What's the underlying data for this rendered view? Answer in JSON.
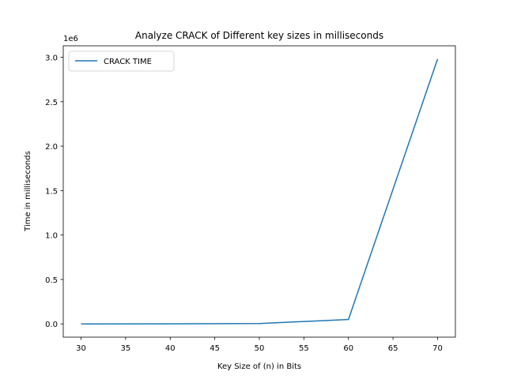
{
  "chart_data": {
    "type": "line",
    "title": "Analyze CRACK of Different key sizes in milliseconds",
    "xlabel": "Key Size of (n) in Bits",
    "ylabel": "Time in milliseconds",
    "y_offset_text": "1e6",
    "x": [
      30,
      40,
      50,
      60,
      70
    ],
    "series": [
      {
        "name": "CRACK TIME",
        "color": "#1f77b4",
        "values": [
          0,
          500,
          4000,
          50000,
          2980000
        ]
      }
    ],
    "xlim": [
      28,
      72
    ],
    "ylim": [
      -149000,
      3129000
    ],
    "x_ticks": [
      30,
      35,
      40,
      45,
      50,
      55,
      60,
      65,
      70
    ],
    "y_ticks": [
      0,
      500000,
      1000000,
      1500000,
      2000000,
      2500000,
      3000000
    ],
    "y_tick_labels": [
      "0.0",
      "0.5",
      "1.0",
      "1.5",
      "2.0",
      "2.5",
      "3.0"
    ],
    "grid": false,
    "legend_position": "upper left"
  }
}
